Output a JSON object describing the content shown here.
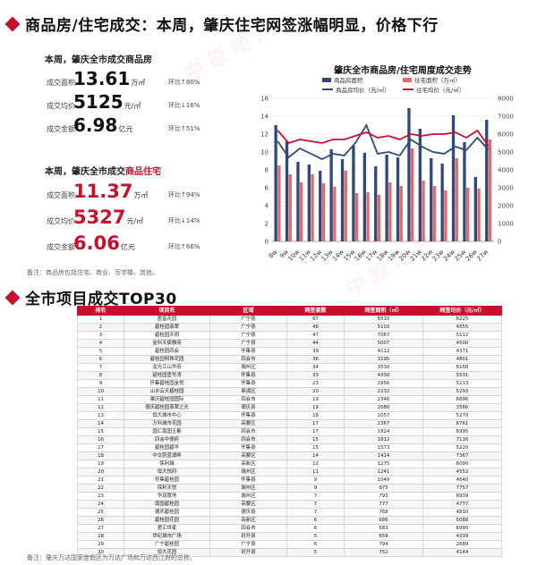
{
  "header": {
    "title": "商品房/住宅成交：本周，肇庆住宅网签涨幅明显，价格下行"
  },
  "commercial": {
    "heading": "本周，肇庆全市成交商品房",
    "area": {
      "label": "成交面积",
      "value": "13.61",
      "unit": "万㎡",
      "change": "环比↑80%",
      "dir": "up"
    },
    "price": {
      "label": "成交均价",
      "value": "5125",
      "unit": "元/㎡",
      "change": "环比↓16%",
      "dir": "down"
    },
    "amount": {
      "label": "成交金额",
      "value": "6.98",
      "unit": "亿元",
      "change": "环比↑51%",
      "dir": "up"
    }
  },
  "residential": {
    "heading_prefix": "本周，肇庆全市成交",
    "heading_highlight": "商品住宅",
    "area": {
      "label": "成交面积",
      "value": "11.37",
      "unit": "万㎡",
      "change": "环比↑94%",
      "dir": "up"
    },
    "price": {
      "label": "成交均价",
      "value": "5327",
      "unit": "元/㎡",
      "change": "环比↓14%",
      "dir": "down"
    },
    "amount": {
      "label": "成交金额",
      "value": "6.06",
      "unit": "亿元",
      "change": "环比↑66%",
      "dir": "up"
    }
  },
  "note1": "备注：商品房包括住宅、商业、写字楼、其他。",
  "section2": {
    "title": "全市项目成交TOP30"
  },
  "note2": "备注：肇庆万达国家度假区为万达广场和万达西江府的总称。",
  "watermark": "中 原 地 产",
  "colors": {
    "accent": "#c8102e",
    "series_blue": "#2e4a7a",
    "series_pink": "#e46a6a",
    "series_red_line": "#c8102e"
  },
  "chart_data": {
    "type": "bar",
    "title": "肇庆全市商品房/住宅周度成交走势",
    "categories": [
      "8w",
      "9w",
      "10w",
      "11w",
      "12w",
      "13w",
      "14w",
      "15w",
      "16w",
      "17w",
      "18w",
      "19w",
      "20w",
      "21w",
      "22w",
      "23w",
      "24w",
      "25w",
      "26w",
      "27w"
    ],
    "ylim": [
      0,
      16
    ],
    "y2lim": [
      0,
      8000
    ],
    "yticks": [
      0,
      2,
      4,
      6,
      8,
      10,
      12,
      14,
      16
    ],
    "y2ticks": [
      0,
      1000,
      2000,
      3000,
      4000,
      5000,
      6000,
      7000,
      8000
    ],
    "series": [
      {
        "name": "商品房面积",
        "kind": "bar",
        "axis": "left",
        "color": "#2e4a7a",
        "values": [
          13.0,
          11.2,
          8.9,
          8.6,
          7.9,
          10.3,
          9.2,
          10.7,
          9.9,
          8.4,
          9.7,
          9.4,
          14.9,
          12.6,
          9.3,
          8.7,
          14.1,
          11.1,
          7.2,
          13.6
        ]
      },
      {
        "name": "住宅面积（万㎡）",
        "kind": "bar",
        "axis": "left",
        "color": "#e46a6a",
        "values": [
          8.5,
          7.5,
          6.6,
          7.5,
          6.5,
          6.1,
          7.9,
          5.4,
          5.5,
          5.2,
          6.6,
          6.2,
          10.4,
          6.8,
          6.2,
          5.7,
          9.3,
          6.0,
          5.9,
          11.4
        ]
      },
      {
        "name": "商品房均价（元/㎡）",
        "kind": "line",
        "axis": "right",
        "color": "#2e4a7a",
        "values": [
          5600,
          4700,
          5200,
          4900,
          4600,
          4900,
          4800,
          5500,
          6500,
          4900,
          5000,
          4800,
          5700,
          5300,
          5000,
          4900,
          5300,
          5100,
          5800,
          5125
        ]
      },
      {
        "name": "住宅均价（元/㎡）",
        "kind": "line",
        "axis": "right",
        "color": "#c8102e",
        "values": [
          6200,
          5500,
          5700,
          5600,
          5500,
          5700,
          5700,
          5900,
          6100,
          5800,
          5900,
          5700,
          6000,
          5900,
          6000,
          6000,
          6100,
          5800,
          6200,
          5327
        ]
      }
    ]
  },
  "table": {
    "headers": [
      "排名",
      "项目名",
      "区域",
      "网签套数",
      "网签面积（㎡）",
      "网签均价（元/㎡）"
    ],
    "rows": [
      [
        "1",
        "盈富花园",
        "广宁县",
        "67",
        "8510",
        "6225"
      ],
      [
        "2",
        "碧桂园翡翠",
        "广宁县",
        "48",
        "5103",
        "4555"
      ],
      [
        "3",
        "碧桂园天玥",
        "广宁县",
        "47",
        "7067",
        "5112"
      ],
      [
        "4",
        "金科天宸雅苑",
        "广宁县",
        "44",
        "5007",
        "4500"
      ],
      [
        "5",
        "碧桂园四会",
        "怀集县",
        "39",
        "4112",
        "4371"
      ],
      [
        "6",
        "碧桂园明珠花园",
        "四会市",
        "36",
        "3195",
        "4801"
      ],
      [
        "7",
        "龙光江山华府",
        "端州区",
        "34",
        "3530",
        "6168"
      ],
      [
        "8",
        "碧桂园壹号湾",
        "怀集县",
        "33",
        "4330",
        "5531"
      ],
      [
        "9",
        "怀集碧桂园金悦",
        "怀集县",
        "23",
        "2956",
        "5213"
      ],
      [
        "10",
        "山水云天碧桂园",
        "鼎湖区",
        "20",
        "2232",
        "5293"
      ],
      [
        "11",
        "肇庆碧桂园国际",
        "四会市",
        "19",
        "2346",
        "6696"
      ],
      [
        "12",
        "德庆碧桂园翡翠之光",
        "德庆县",
        "19",
        "2080",
        "3566"
      ],
      [
        "13",
        "恒大城市中心",
        "怀集县",
        "18",
        "2057",
        "5270"
      ],
      [
        "14",
        "万科城市花园",
        "高要区",
        "17",
        "2367",
        "6761"
      ],
      [
        "15",
        "国汇南国玉都",
        "四会市",
        "17",
        "1824",
        "6995"
      ],
      [
        "16",
        "四会中德府",
        "四会市",
        "15",
        "1812",
        "7116"
      ],
      [
        "17",
        "碧桂园碧华",
        "怀集县",
        "15",
        "1573",
        "5220"
      ],
      [
        "18",
        "中交蔚蓝湖畔",
        "高要区",
        "14",
        "1414",
        "7367"
      ],
      [
        "19",
        "保利城",
        "高新区",
        "12",
        "1275",
        "6000"
      ],
      [
        "20",
        "恒大悦府",
        "端州区",
        "11",
        "1241",
        "4552"
      ],
      [
        "21",
        "怀集碧桂园",
        "怀集县",
        "9",
        "1049",
        "4640"
      ],
      [
        "22",
        "保利天悦",
        "端州区",
        "9",
        "975",
        "7757"
      ],
      [
        "23",
        "华润置地",
        "端州区",
        "7",
        "793",
        "8939"
      ],
      [
        "24",
        "南国碧桂园",
        "高要区",
        "7",
        "777",
        "4777"
      ],
      [
        "25",
        "德庆碧桂园",
        "德庆县",
        "7",
        "768",
        "4810"
      ],
      [
        "26",
        "碧桂园花园",
        "高新区",
        "6",
        "686",
        "5088"
      ],
      [
        "27",
        "君汇世家",
        "四会市",
        "6",
        "683",
        "6990"
      ],
      [
        "28",
        "世纪城市广场",
        "封开县",
        "5",
        "658",
        "4339"
      ],
      [
        "29",
        "广宁碧桂园",
        "广宁县",
        "6",
        "794",
        "2689"
      ],
      [
        "30",
        "恒大花园",
        "封开县",
        "5",
        "752",
        "4144"
      ]
    ]
  }
}
